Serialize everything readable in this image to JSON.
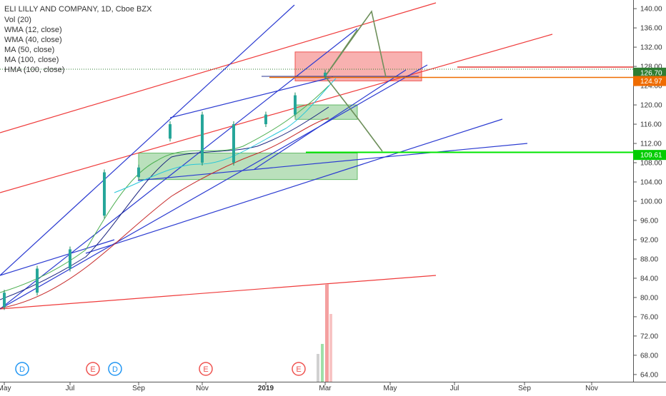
{
  "legend": {
    "title": "ELI LILLY AND COMPANY, 1D, Cboe BZX",
    "indicators": [
      "Vol (20)",
      "WMA (12, close)",
      "WMA (40, close)",
      "MA (50, close)",
      "MA (100, close)",
      "HMA (100, close)"
    ]
  },
  "chart_data": {
    "type": "candlestick",
    "title": "ELI LILLY AND COMPANY, 1D, Cboe BZX",
    "x_ticks": [
      "May",
      "Jul",
      "Sep",
      "Nov",
      "2019",
      "Mar",
      "May",
      "Jul",
      "Sep",
      "Nov"
    ],
    "y_ticks": [
      64,
      68,
      72,
      76,
      80,
      84,
      88,
      92,
      96,
      100,
      104,
      108,
      112,
      116,
      120,
      124,
      128,
      132,
      136,
      140
    ],
    "ylim": [
      62.5,
      141.5
    ],
    "grid": false,
    "price_labels": [
      {
        "value": "126.70",
        "price": 126.7,
        "color": "#2e7d32"
      },
      {
        "value": "124.97",
        "price": 124.97,
        "color": "#ef6c00"
      },
      {
        "value": "109.61",
        "price": 109.61,
        "color": "#00cc00"
      }
    ],
    "candles": [
      {
        "date": "2018-05",
        "open": 78,
        "close": 81
      },
      {
        "date": "2018-06",
        "open": 81,
        "close": 86
      },
      {
        "date": "2018-07",
        "open": 86,
        "close": 90
      },
      {
        "date": "2018-08",
        "open": 97,
        "close": 106
      },
      {
        "date": "2018-09",
        "open": 105,
        "close": 107
      },
      {
        "date": "2018-10",
        "open": 113,
        "close": 116
      },
      {
        "date": "2018-11",
        "open": 108,
        "close": 118
      },
      {
        "date": "2018-12",
        "open": 108,
        "close": 116
      },
      {
        "date": "2019-01",
        "open": 116,
        "close": 118
      },
      {
        "date": "2019-02",
        "open": 118,
        "close": 122
      },
      {
        "date": "2019-03",
        "open": 126,
        "close": 126.7
      }
    ],
    "earnings_markers": [
      "D",
      "E",
      "D",
      "E",
      "E"
    ],
    "zones": [
      {
        "kind": "resistance",
        "from": "2019-02",
        "to": "2019-06",
        "low": 125,
        "high": 131,
        "color": "#ef5350"
      },
      {
        "kind": "support",
        "from": "2019-02",
        "to": "2019-04",
        "low": 117,
        "high": 120,
        "color": "#66bb6a"
      },
      {
        "kind": "support",
        "from": "2018-09",
        "to": "2019-04",
        "low": 104.5,
        "high": 110,
        "color": "#66bb6a"
      }
    ]
  }
}
